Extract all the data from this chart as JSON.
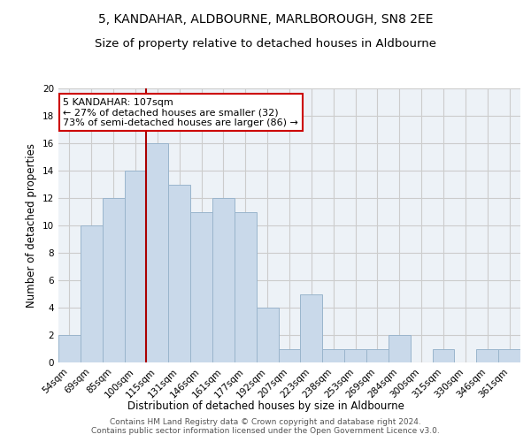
{
  "title": "5, KANDAHAR, ALDBOURNE, MARLBOROUGH, SN8 2EE",
  "subtitle": "Size of property relative to detached houses in Aldbourne",
  "xlabel": "Distribution of detached houses by size in Aldbourne",
  "ylabel": "Number of detached properties",
  "categories": [
    "54sqm",
    "69sqm",
    "85sqm",
    "100sqm",
    "115sqm",
    "131sqm",
    "146sqm",
    "161sqm",
    "177sqm",
    "192sqm",
    "207sqm",
    "223sqm",
    "238sqm",
    "253sqm",
    "269sqm",
    "284sqm",
    "300sqm",
    "315sqm",
    "330sqm",
    "346sqm",
    "361sqm"
  ],
  "values": [
    2,
    10,
    12,
    14,
    16,
    13,
    11,
    12,
    11,
    4,
    1,
    5,
    1,
    1,
    1,
    2,
    0,
    1,
    0,
    1,
    1
  ],
  "bar_color": "#c9d9ea",
  "bar_edge_color": "#9ab5cc",
  "vline_color": "#aa0000",
  "annotation_text": "5 KANDAHAR: 107sqm\n← 27% of detached houses are smaller (32)\n73% of semi-detached houses are larger (86) →",
  "annotation_box_color": "white",
  "annotation_box_edge": "#cc0000",
  "ylim": [
    0,
    20
  ],
  "yticks": [
    0,
    2,
    4,
    6,
    8,
    10,
    12,
    14,
    16,
    18,
    20
  ],
  "grid_color": "#cccccc",
  "background_color": "#edf2f7",
  "footer_text": "Contains HM Land Registry data © Crown copyright and database right 2024.\nContains public sector information licensed under the Open Government Licence v3.0.",
  "title_fontsize": 10,
  "subtitle_fontsize": 9.5,
  "xlabel_fontsize": 8.5,
  "ylabel_fontsize": 8.5,
  "tick_fontsize": 7.5,
  "annotation_fontsize": 8,
  "footer_fontsize": 6.5
}
